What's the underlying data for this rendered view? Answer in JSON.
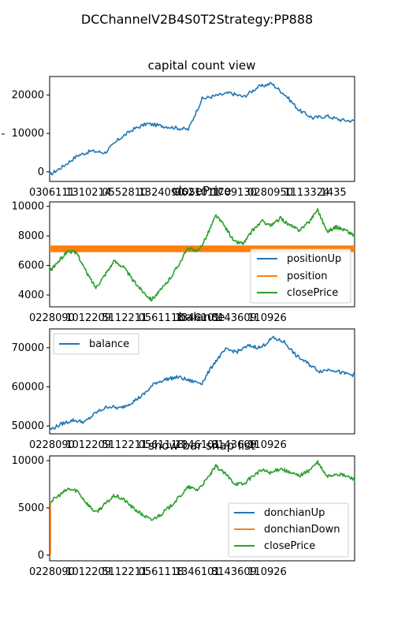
{
  "figure": {
    "suptitle": "DCChannelV2B4S0T2Strategy:PP888"
  },
  "chart_data": [
    {
      "type": "line",
      "title": "capital count view",
      "xlabel": "",
      "ylabel": "",
      "ylim": [
        -2500,
        24800
      ],
      "yticks": [
        0,
        10000,
        20000
      ],
      "xtick_labels": [
        "0306111",
        "1310214",
        "0552810",
        "1324090",
        "9621011",
        "1709130",
        "0280950",
        "1113324",
        "1435"
      ],
      "x_count": 11,
      "grid": false,
      "legend": null,
      "series": [
        {
          "name": "",
          "color": "#1f77b4",
          "values": [
            -800,
            1500,
            4200,
            5400,
            5000,
            8500,
            11000,
            12500,
            12000,
            11500,
            11000,
            19000,
            19800,
            20500,
            19500,
            22000,
            23000,
            20000,
            16000,
            14000,
            14500,
            13500,
            13200
          ]
        }
      ]
    },
    {
      "type": "line",
      "title": "closePrice",
      "ylim": [
        3200,
        10300
      ],
      "yticks": [
        4000,
        6000,
        8000,
        10000
      ],
      "xtick_labels": [
        "0228090",
        "1012209",
        "5112211",
        "0561118",
        "1346101",
        "8143609",
        "110926"
      ],
      "grid": false,
      "legend": "bottom-right",
      "series": [
        {
          "name": "positionUp",
          "color": "#1f77b4",
          "values": []
        },
        {
          "name": "position",
          "color": "#ff7f0e",
          "band": [
            6900,
            7350
          ],
          "values": [
            7100
          ]
        },
        {
          "name": "closePrice",
          "color": "#2ca02c",
          "values": [
            5600,
            6300,
            7000,
            6800,
            5500,
            4500,
            5400,
            6300,
            5900,
            5000,
            4300,
            3700,
            4300,
            5100,
            6100,
            7200,
            6900,
            8000,
            9400,
            8600,
            7600,
            7500,
            8400,
            9000,
            8700,
            9200,
            8700,
            8400,
            8900,
            9800,
            8300,
            8600,
            8400,
            8000
          ]
        }
      ]
    },
    {
      "type": "line",
      "title": "balance",
      "ylim": [
        48000,
        74800
      ],
      "yticks": [
        50000,
        60000,
        70000
      ],
      "xtick_labels": [
        "0228090",
        "1012209",
        "5112211",
        "0561118",
        "1346101",
        "8143609",
        "110926"
      ],
      "grid": false,
      "legend": "top-left",
      "series": [
        {
          "name": "balance",
          "color": "#1f77b4",
          "values": [
            49000,
            50500,
            51500,
            51000,
            53500,
            55000,
            54500,
            56000,
            58000,
            61000,
            62000,
            62500,
            61500,
            61000,
            66000,
            69500,
            69000,
            70500,
            70000,
            72500,
            71500,
            68000,
            66000,
            64000,
            64500,
            63500,
            63000
          ]
        }
      ]
    },
    {
      "type": "line",
      "title": "show bar snap list",
      "ylim": [
        -600,
        10500
      ],
      "yticks": [
        0,
        5000,
        10000
      ],
      "xtick_labels": [
        "0228090",
        "1012209",
        "5112211",
        "0561118",
        "1346101",
        "8143609",
        "110926"
      ],
      "grid": false,
      "legend": "bottom-right",
      "series": [
        {
          "name": "donchianUp",
          "color": "#1f77b4",
          "values": []
        },
        {
          "name": "donchianDown",
          "color": "#ff7f0e",
          "values": [
            0,
            5600
          ]
        },
        {
          "name": "closePrice",
          "color": "#2ca02c",
          "values": [
            5600,
            6300,
            7000,
            6800,
            5500,
            4500,
            5400,
            6300,
            5900,
            5000,
            4300,
            3700,
            4300,
            5100,
            6100,
            7200,
            6900,
            8000,
            9400,
            8600,
            7600,
            7500,
            8400,
            9000,
            8700,
            9200,
            8700,
            8400,
            8900,
            9800,
            8300,
            8600,
            8400,
            8000
          ]
        }
      ]
    }
  ]
}
